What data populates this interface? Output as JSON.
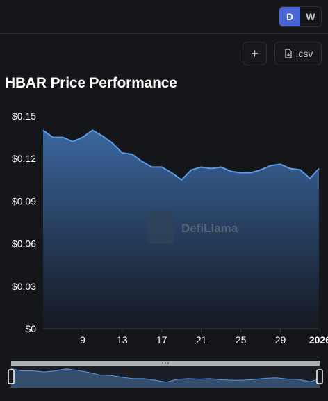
{
  "toggle": {
    "options": [
      "D",
      "W"
    ],
    "active": "D"
  },
  "toolbar": {
    "add_label": "+",
    "csv_label": ".csv"
  },
  "title": "HBAR Price Performance",
  "watermark": "DefiLlama",
  "colors": {
    "line": "#5b9be6",
    "area_top": "#3d6aa5",
    "area_bottom": "#151a24",
    "toggle_active": "#4a66d6"
  },
  "chart_data": {
    "type": "area",
    "title": "HBAR Price Performance",
    "xlabel": "",
    "ylabel": "",
    "ylim": [
      0,
      0.15
    ],
    "y_ticks": [
      "$0",
      "$0.03",
      "$0.06",
      "$0.09",
      "$0.12",
      "$0.15"
    ],
    "x_tick_labels": [
      "9",
      "13",
      "17",
      "21",
      "25",
      "29",
      "2026"
    ],
    "x_tick_days": [
      9,
      13,
      17,
      21,
      25,
      29,
      33
    ],
    "x_range": [
      5,
      32.9
    ],
    "grid": false,
    "series": [
      {
        "x": [
          5,
          6,
          7,
          8,
          9,
          10,
          11,
          12,
          13,
          14,
          15,
          16,
          17,
          18,
          19,
          20,
          21,
          22,
          23,
          24,
          25,
          26,
          27,
          28,
          29,
          30,
          31,
          32,
          32.9
        ],
        "values": [
          0.14,
          0.135,
          0.135,
          0.132,
          0.135,
          0.14,
          0.136,
          0.131,
          0.124,
          0.123,
          0.118,
          0.114,
          0.114,
          0.11,
          0.105,
          0.112,
          0.114,
          0.113,
          0.114,
          0.111,
          0.11,
          0.11,
          0.112,
          0.115,
          0.116,
          0.113,
          0.112,
          0.106,
          0.113
        ]
      }
    ]
  }
}
